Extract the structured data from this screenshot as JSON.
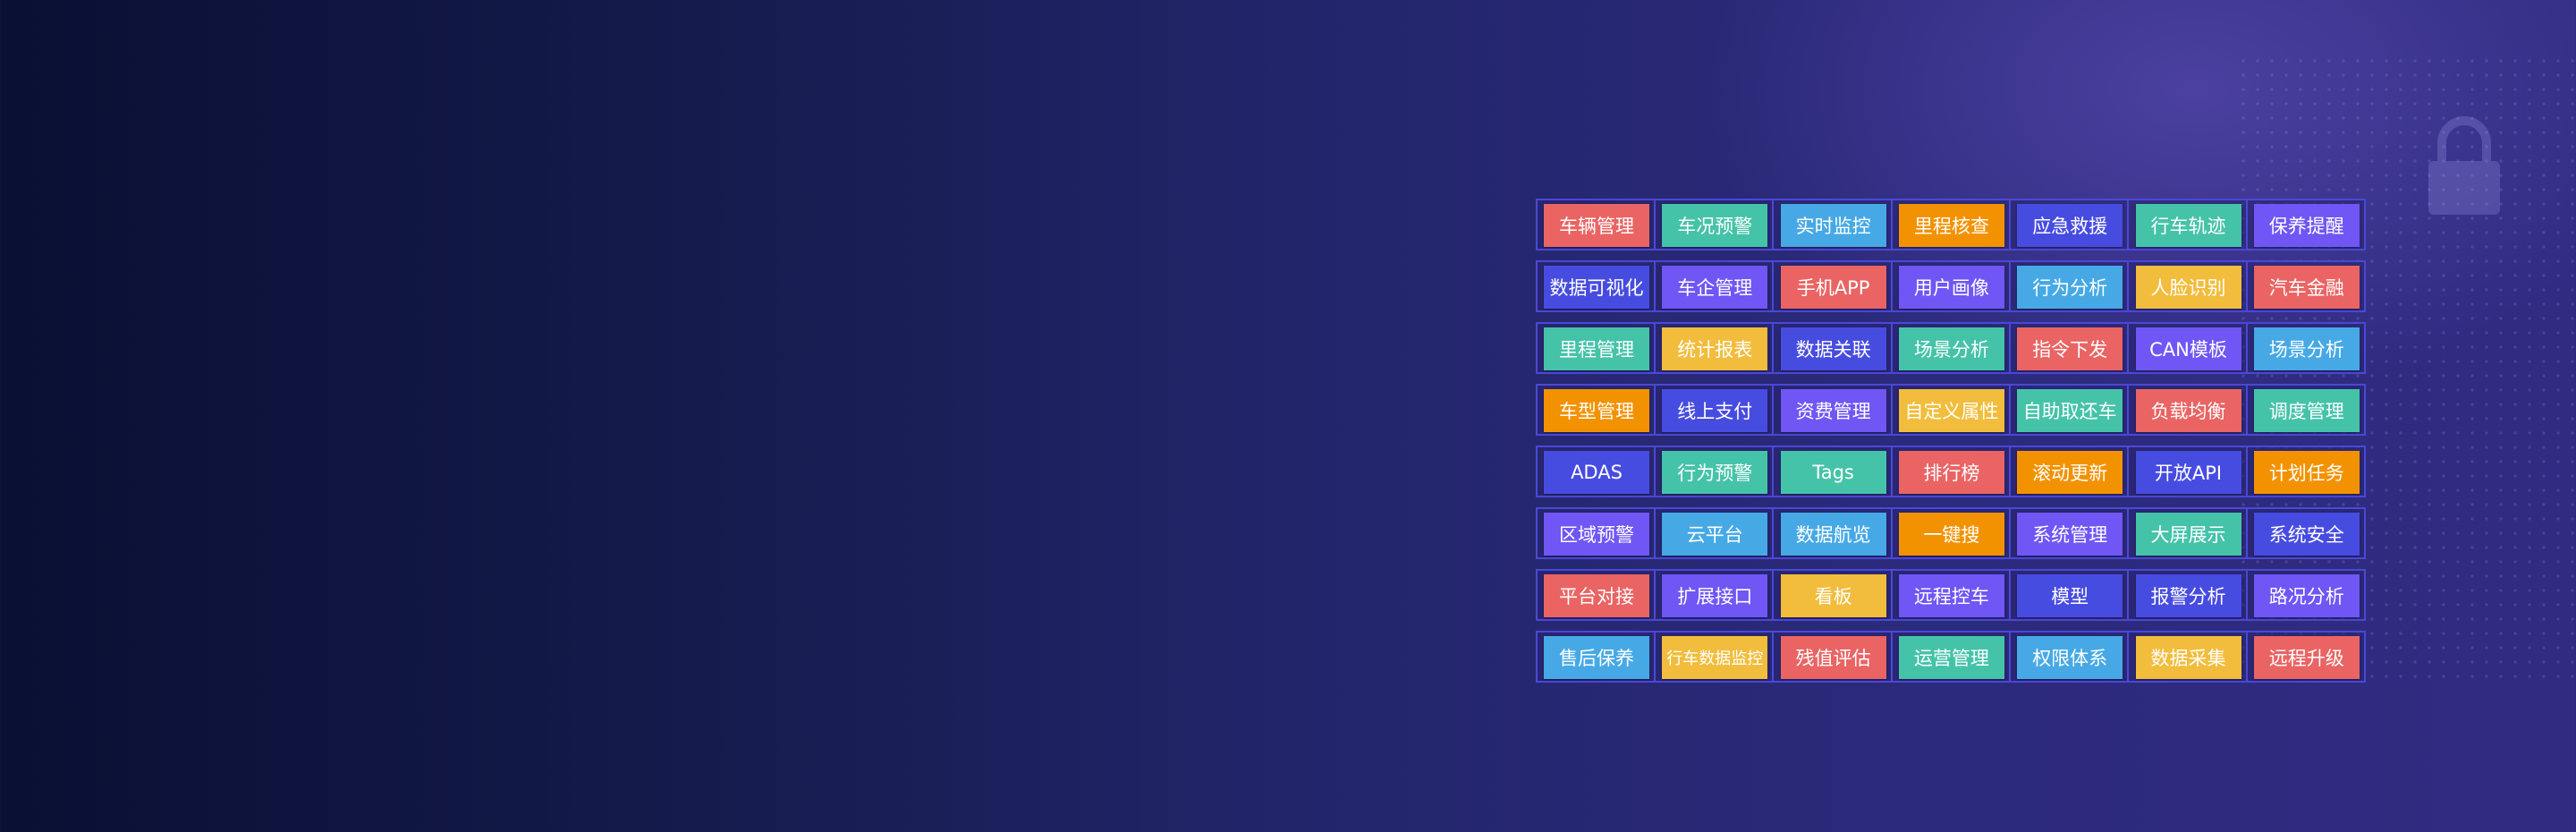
{
  "colors": {
    "red": "#ea6464",
    "teal": "#45c3a9",
    "blue": "#46a9e6",
    "orange": "#f39200",
    "indigo": "#474ce0",
    "purple": "#7056f5",
    "yellow": "#f2bd3c"
  },
  "feature_grid": [
    [
      {
        "label": "车辆管理",
        "color": "red"
      },
      {
        "label": "车况预警",
        "color": "teal"
      },
      {
        "label": "实时监控",
        "color": "blue"
      },
      {
        "label": "里程核查",
        "color": "orange"
      },
      {
        "label": "应急救援",
        "color": "indigo"
      },
      {
        "label": "行车轨迹",
        "color": "teal"
      },
      {
        "label": "保养提醒",
        "color": "purple"
      }
    ],
    [
      {
        "label": "数据可视化",
        "color": "indigo"
      },
      {
        "label": "车企管理",
        "color": "purple"
      },
      {
        "label": "手机APP",
        "color": "red"
      },
      {
        "label": "用户画像",
        "color": "purple"
      },
      {
        "label": "行为分析",
        "color": "blue"
      },
      {
        "label": "人脸识别",
        "color": "yellow"
      },
      {
        "label": "汽车金融",
        "color": "red"
      }
    ],
    [
      {
        "label": "里程管理",
        "color": "teal"
      },
      {
        "label": "统计报表",
        "color": "yellow"
      },
      {
        "label": "数据关联",
        "color": "indigo"
      },
      {
        "label": "场景分析",
        "color": "teal"
      },
      {
        "label": "指令下发",
        "color": "red"
      },
      {
        "label": "CAN模板",
        "color": "purple"
      },
      {
        "label": "场景分析",
        "color": "blue"
      }
    ],
    [
      {
        "label": "车型管理",
        "color": "orange"
      },
      {
        "label": "线上支付",
        "color": "indigo"
      },
      {
        "label": "资费管理",
        "color": "purple"
      },
      {
        "label": "自定义属性",
        "color": "yellow"
      },
      {
        "label": "自助取还车",
        "color": "teal"
      },
      {
        "label": "负载均衡",
        "color": "red"
      },
      {
        "label": "调度管理",
        "color": "teal"
      }
    ],
    [
      {
        "label": "ADAS",
        "color": "indigo"
      },
      {
        "label": "行为预警",
        "color": "teal"
      },
      {
        "label": "Tags",
        "color": "teal"
      },
      {
        "label": "排行榜",
        "color": "red"
      },
      {
        "label": "滚动更新",
        "color": "orange"
      },
      {
        "label": "开放API",
        "color": "indigo"
      },
      {
        "label": "计划任务",
        "color": "orange"
      }
    ],
    [
      {
        "label": "区域预警",
        "color": "purple"
      },
      {
        "label": "云平台",
        "color": "blue"
      },
      {
        "label": "数据航览",
        "color": "blue"
      },
      {
        "label": "一键搜",
        "color": "orange"
      },
      {
        "label": "系统管理",
        "color": "purple"
      },
      {
        "label": "大屏展示",
        "color": "teal"
      },
      {
        "label": "系统安全",
        "color": "indigo"
      }
    ],
    [
      {
        "label": "平台对接",
        "color": "red"
      },
      {
        "label": "扩展接口",
        "color": "purple"
      },
      {
        "label": "看板",
        "color": "yellow"
      },
      {
        "label": "远程控车",
        "color": "purple"
      },
      {
        "label": "模型",
        "color": "indigo"
      },
      {
        "label": "报警分析",
        "color": "indigo"
      },
      {
        "label": "路况分析",
        "color": "purple"
      }
    ],
    [
      {
        "label": "售后保养",
        "color": "blue"
      },
      {
        "label": "行车数据监控",
        "color": "yellow"
      },
      {
        "label": "残值评估",
        "color": "red"
      },
      {
        "label": "运营管理",
        "color": "teal"
      },
      {
        "label": "权限体系",
        "color": "blue"
      },
      {
        "label": "数据采集",
        "color": "yellow"
      },
      {
        "label": "远程升级",
        "color": "red"
      }
    ]
  ]
}
